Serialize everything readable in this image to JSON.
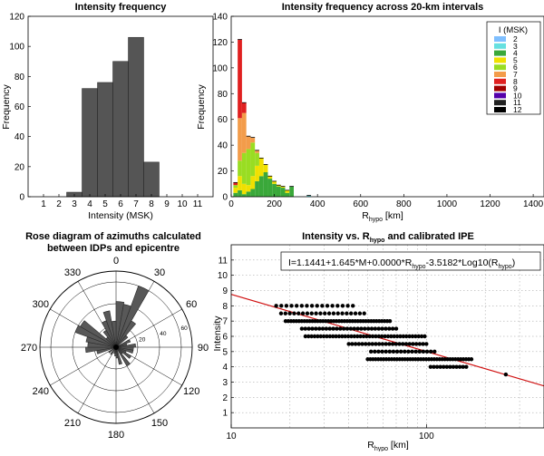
{
  "chart_data": [
    {
      "type": "bar",
      "title": "Intensity frequency",
      "xlabel": "Intensity (MSK)",
      "ylabel": "Frequency",
      "xlim": [
        0,
        12
      ],
      "ylim": [
        0,
        120
      ],
      "xticks": [
        "1",
        "2",
        "3",
        "4",
        "5",
        "6",
        "7",
        "8",
        "9",
        "10",
        "11"
      ],
      "yticks": [
        "0",
        "20",
        "40",
        "60",
        "80",
        "100",
        "120"
      ],
      "categories": [
        "1",
        "2",
        "3",
        "4",
        "5",
        "6",
        "7",
        "8",
        "9",
        "10",
        "11"
      ],
      "values": [
        0,
        0,
        3,
        72,
        76,
        90,
        106,
        23,
        0,
        0,
        0
      ],
      "bar_color": "#555555"
    },
    {
      "type": "bar",
      "stacked": true,
      "title": "Intensity frequency across 20-km intervals",
      "xlabel": "R",
      "xlabel_sub": "hypo",
      "xlabel_unit": " [km]",
      "ylabel": "Frequency",
      "xlim": [
        0,
        1450
      ],
      "ylim": [
        0,
        140
      ],
      "xticks": [
        "0",
        "200",
        "400",
        "600",
        "800",
        "1000",
        "1200",
        "1400"
      ],
      "yticks": [
        "0",
        "20",
        "40",
        "60",
        "80",
        "100",
        "120",
        "140"
      ],
      "bin_width": 20,
      "legend_title": "I (MSK)",
      "legend_position": "top-right",
      "legend_entries": [
        "2",
        "3",
        "4",
        "5",
        "6",
        "7",
        "8",
        "9",
        "10",
        "11",
        "12"
      ],
      "legend_colors": [
        "#7fbfff",
        "#66e0e0",
        "#3aa83a",
        "#f0e000",
        "#99dd22",
        "#f39c4a",
        "#e02020",
        "#a00000",
        "#5500aa",
        "#222222",
        "#000000"
      ],
      "x": [
        20,
        40,
        60,
        80,
        100,
        120,
        140,
        160,
        180,
        200,
        220,
        240,
        260,
        280,
        360
      ],
      "series": [
        {
          "name": "3",
          "values": [
            0,
            0,
            0,
            0,
            0,
            0,
            0,
            0,
            0,
            0,
            0,
            0,
            0,
            0,
            1
          ]
        },
        {
          "name": "4",
          "values": [
            3,
            5,
            2,
            4,
            6,
            12,
            16,
            19,
            14,
            10,
            8,
            7,
            3,
            8,
            0
          ]
        },
        {
          "name": "5",
          "values": [
            4,
            11,
            8,
            5,
            10,
            12,
            14,
            6,
            2,
            2,
            1,
            1,
            2,
            0,
            0
          ]
        },
        {
          "name": "6",
          "values": [
            2,
            12,
            24,
            28,
            26,
            10,
            0,
            0,
            0,
            0,
            0,
            0,
            0,
            0,
            0
          ]
        },
        {
          "name": "7",
          "values": [
            0,
            33,
            31,
            10,
            4,
            2,
            0,
            0,
            0,
            0,
            0,
            0,
            0,
            0,
            0
          ]
        },
        {
          "name": "8",
          "values": [
            2,
            61,
            8,
            0,
            0,
            0,
            0,
            0,
            0,
            0,
            0,
            0,
            0,
            0,
            0
          ]
        }
      ]
    },
    {
      "type": "rose",
      "title_line1": "Rose diagram of azimuths calculated",
      "title_line2": "between  IDPs and epicentre",
      "angle_labels": [
        "0",
        "30",
        "60",
        "90",
        "120",
        "150",
        "180",
        "210",
        "240",
        "270",
        "300",
        "330"
      ],
      "radial_ticks": [
        "20",
        "40",
        "60"
      ],
      "rmax": 70,
      "sector_width_deg": 10,
      "sectors": [
        {
          "angle": 5,
          "value": 42
        },
        {
          "angle": 15,
          "value": 40
        },
        {
          "angle": 25,
          "value": 60
        },
        {
          "angle": 35,
          "value": 28
        },
        {
          "angle": 45,
          "value": 14
        },
        {
          "angle": 65,
          "value": 14
        },
        {
          "angle": 75,
          "value": 10
        },
        {
          "angle": 85,
          "value": 18
        },
        {
          "angle": 95,
          "value": 16
        },
        {
          "angle": 105,
          "value": 16
        },
        {
          "angle": 115,
          "value": 10
        },
        {
          "angle": 125,
          "value": 16
        },
        {
          "angle": 135,
          "value": 8
        },
        {
          "angle": 145,
          "value": 20
        },
        {
          "angle": 165,
          "value": 16
        },
        {
          "angle": 175,
          "value": 10
        },
        {
          "angle": 185,
          "value": 8
        },
        {
          "angle": 195,
          "value": 6
        },
        {
          "angle": 215,
          "value": 8
        },
        {
          "angle": 235,
          "value": 8
        },
        {
          "angle": 255,
          "value": 18
        },
        {
          "angle": 265,
          "value": 28
        },
        {
          "angle": 275,
          "value": 26
        },
        {
          "angle": 285,
          "value": 28
        },
        {
          "angle": 295,
          "value": 40
        },
        {
          "angle": 305,
          "value": 38
        },
        {
          "angle": 315,
          "value": 12
        },
        {
          "angle": 325,
          "value": 18
        },
        {
          "angle": 335,
          "value": 26
        },
        {
          "angle": 345,
          "value": 34
        },
        {
          "angle": 355,
          "value": 24
        }
      ]
    },
    {
      "type": "scatter",
      "title_pre": "Intensity vs. R",
      "title_sub": "hypo",
      "title_post": " and calibrated IPE",
      "xlabel": "R",
      "xlabel_sub": "hypo",
      "xlabel_unit": " [km]",
      "ylabel": "Intensity",
      "xscale": "log",
      "xlim": [
        10,
        400
      ],
      "ylim": [
        0,
        12
      ],
      "xticks": [
        "10",
        "100"
      ],
      "yticks": [
        "1",
        "2",
        "3",
        "4",
        "5",
        "6",
        "7",
        "8",
        "9",
        "10",
        "11"
      ],
      "equation_parts": [
        "I=1.1441+1.645*M+0.0000*R",
        "hypo",
        "-3.5182*Log10(R",
        "hypo",
        ")"
      ],
      "fit_line": {
        "x": [
          10,
          400
        ],
        "y": [
          8.75,
          2.75
        ],
        "color": "#d01010"
      },
      "points_by_intensity": [
        {
          "y": 8,
          "xmin": 17,
          "xmax": 42,
          "n": 16
        },
        {
          "y": 7.5,
          "xmin": 18,
          "xmax": 48,
          "n": 20
        },
        {
          "y": 7,
          "xmin": 19,
          "xmax": 65,
          "n": 40
        },
        {
          "y": 6.5,
          "xmin": 23,
          "xmax": 70,
          "n": 28
        },
        {
          "y": 6,
          "xmin": 24,
          "xmax": 98,
          "n": 40
        },
        {
          "y": 5.5,
          "xmin": 40,
          "xmax": 100,
          "n": 24
        },
        {
          "y": 5,
          "xmin": 52,
          "xmax": 110,
          "n": 18
        },
        {
          "y": 4.5,
          "xmin": 50,
          "xmax": 170,
          "n": 40
        },
        {
          "y": 4,
          "xmin": 105,
          "xmax": 160,
          "n": 12
        },
        {
          "y": 3.5,
          "xmin": 255,
          "xmax": 255,
          "n": 1
        }
      ]
    }
  ]
}
